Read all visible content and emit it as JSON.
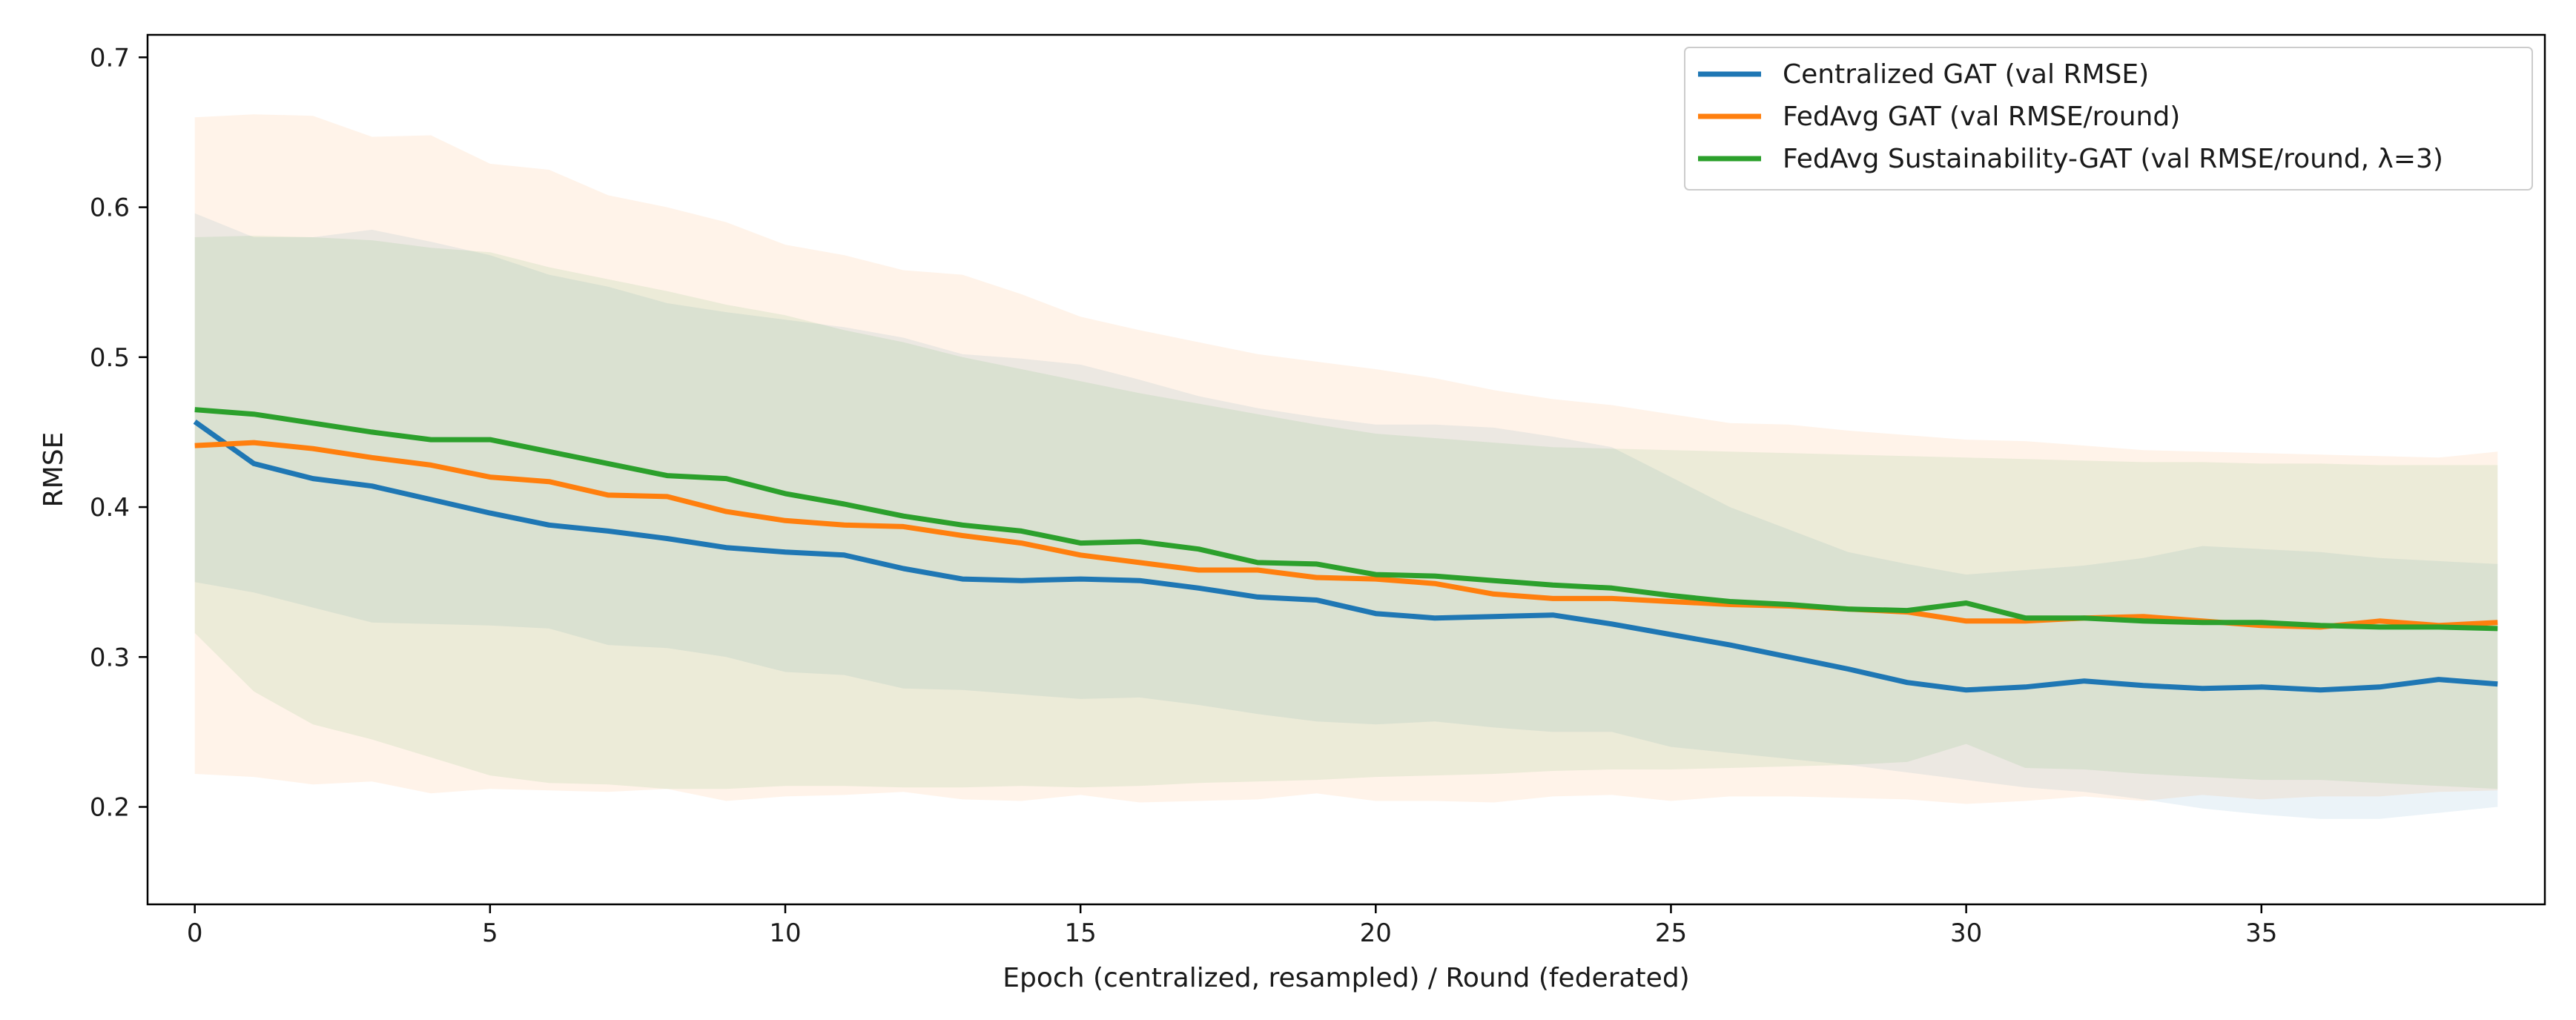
{
  "chart_data": {
    "type": "line",
    "xlabel": "Epoch (centralized, resampled) / Round (federated)",
    "ylabel": "RMSE",
    "xlim": [
      -0.8,
      39.8
    ],
    "ylim": [
      0.135,
      0.715
    ],
    "xticks": [
      0,
      5,
      10,
      15,
      20,
      25,
      30,
      35
    ],
    "yticks": [
      0.2,
      0.3,
      0.4,
      0.5,
      0.6,
      0.7
    ],
    "grid": false,
    "legend_position": "top-right",
    "series": [
      {
        "name": "Centralized GAT (val RMSE)",
        "color": "#1f77b4",
        "x": [
          0,
          1,
          2,
          3,
          4,
          5,
          6,
          7,
          8,
          9,
          10,
          11,
          12,
          13,
          14,
          15,
          16,
          17,
          18,
          19,
          20,
          21,
          22,
          23,
          24,
          25,
          26,
          27,
          28,
          29,
          30,
          31,
          32,
          33,
          34,
          35,
          36,
          37,
          38,
          39
        ],
        "values": [
          0.457,
          0.429,
          0.419,
          0.414,
          0.405,
          0.396,
          0.388,
          0.384,
          0.379,
          0.373,
          0.37,
          0.368,
          0.359,
          0.352,
          0.351,
          0.352,
          0.351,
          0.346,
          0.34,
          0.338,
          0.329,
          0.326,
          0.327,
          0.328,
          0.322,
          0.315,
          0.308,
          0.3,
          0.292,
          0.283,
          0.278,
          0.28,
          0.284,
          0.281,
          0.279,
          0.28,
          0.278,
          0.28,
          0.285,
          0.282
        ],
        "lower": [
          0.35,
          0.343,
          0.333,
          0.323,
          0.322,
          0.321,
          0.319,
          0.308,
          0.306,
          0.3,
          0.29,
          0.288,
          0.279,
          0.278,
          0.275,
          0.272,
          0.273,
          0.268,
          0.262,
          0.257,
          0.255,
          0.257,
          0.253,
          0.25,
          0.25,
          0.24,
          0.236,
          0.232,
          0.228,
          0.223,
          0.218,
          0.213,
          0.21,
          0.205,
          0.199,
          0.195,
          0.192,
          0.192,
          0.196,
          0.2
        ],
        "upper": [
          0.596,
          0.58,
          0.58,
          0.585,
          0.577,
          0.568,
          0.555,
          0.547,
          0.536,
          0.53,
          0.525,
          0.52,
          0.513,
          0.502,
          0.499,
          0.495,
          0.485,
          0.474,
          0.466,
          0.46,
          0.455,
          0.455,
          0.453,
          0.447,
          0.44,
          0.42,
          0.4,
          0.385,
          0.37,
          0.362,
          0.355,
          0.358,
          0.361,
          0.366,
          0.374,
          0.372,
          0.37,
          0.366,
          0.364,
          0.362
        ]
      },
      {
        "name": "FedAvg GAT (val RMSE/round)",
        "color": "#ff7f0e",
        "x": [
          0,
          1,
          2,
          3,
          4,
          5,
          6,
          7,
          8,
          9,
          10,
          11,
          12,
          13,
          14,
          15,
          16,
          17,
          18,
          19,
          20,
          21,
          22,
          23,
          24,
          25,
          26,
          27,
          28,
          29,
          30,
          31,
          32,
          33,
          34,
          35,
          36,
          37,
          38,
          39
        ],
        "values": [
          0.441,
          0.443,
          0.439,
          0.433,
          0.428,
          0.42,
          0.417,
          0.408,
          0.407,
          0.397,
          0.391,
          0.388,
          0.387,
          0.381,
          0.376,
          0.368,
          0.363,
          0.358,
          0.358,
          0.353,
          0.352,
          0.349,
          0.342,
          0.339,
          0.339,
          0.337,
          0.335,
          0.334,
          0.332,
          0.33,
          0.324,
          0.324,
          0.326,
          0.327,
          0.324,
          0.321,
          0.32,
          0.324,
          0.321,
          0.323
        ],
        "lower": [
          0.222,
          0.22,
          0.215,
          0.217,
          0.209,
          0.212,
          0.211,
          0.21,
          0.212,
          0.204,
          0.207,
          0.208,
          0.21,
          0.205,
          0.204,
          0.208,
          0.203,
          0.204,
          0.205,
          0.209,
          0.204,
          0.204,
          0.203,
          0.207,
          0.208,
          0.204,
          0.207,
          0.207,
          0.206,
          0.205,
          0.202,
          0.204,
          0.207,
          0.204,
          0.208,
          0.205,
          0.207,
          0.207,
          0.21,
          0.211
        ],
        "upper": [
          0.66,
          0.662,
          0.661,
          0.647,
          0.648,
          0.629,
          0.625,
          0.608,
          0.6,
          0.59,
          0.575,
          0.568,
          0.558,
          0.555,
          0.542,
          0.527,
          0.518,
          0.51,
          0.502,
          0.497,
          0.492,
          0.486,
          0.478,
          0.472,
          0.468,
          0.462,
          0.456,
          0.455,
          0.451,
          0.448,
          0.445,
          0.444,
          0.441,
          0.438,
          0.437,
          0.436,
          0.435,
          0.434,
          0.433,
          0.437
        ]
      },
      {
        "name": "FedAvg Sustainability-GAT (val RMSE/round, λ=3)",
        "color": "#2ca02c",
        "x": [
          0,
          1,
          2,
          3,
          4,
          5,
          6,
          7,
          8,
          9,
          10,
          11,
          12,
          13,
          14,
          15,
          16,
          17,
          18,
          19,
          20,
          21,
          22,
          23,
          24,
          25,
          26,
          27,
          28,
          29,
          30,
          31,
          32,
          33,
          34,
          35,
          36,
          37,
          38,
          39
        ],
        "values": [
          0.465,
          0.462,
          0.456,
          0.45,
          0.445,
          0.445,
          0.437,
          0.429,
          0.421,
          0.419,
          0.409,
          0.402,
          0.394,
          0.388,
          0.384,
          0.376,
          0.377,
          0.372,
          0.363,
          0.362,
          0.355,
          0.354,
          0.351,
          0.348,
          0.346,
          0.341,
          0.337,
          0.335,
          0.332,
          0.331,
          0.336,
          0.326,
          0.326,
          0.324,
          0.323,
          0.323,
          0.321,
          0.32,
          0.32,
          0.319
        ],
        "lower": [
          0.316,
          0.277,
          0.255,
          0.245,
          0.233,
          0.221,
          0.216,
          0.215,
          0.212,
          0.212,
          0.214,
          0.214,
          0.213,
          0.213,
          0.214,
          0.213,
          0.214,
          0.216,
          0.217,
          0.218,
          0.22,
          0.221,
          0.222,
          0.224,
          0.225,
          0.225,
          0.226,
          0.227,
          0.228,
          0.23,
          0.242,
          0.226,
          0.225,
          0.222,
          0.22,
          0.218,
          0.218,
          0.216,
          0.214,
          0.212
        ],
        "upper": [
          0.58,
          0.581,
          0.58,
          0.578,
          0.573,
          0.57,
          0.56,
          0.552,
          0.544,
          0.535,
          0.528,
          0.518,
          0.51,
          0.5,
          0.492,
          0.484,
          0.476,
          0.469,
          0.462,
          0.455,
          0.449,
          0.446,
          0.443,
          0.44,
          0.439,
          0.438,
          0.437,
          0.436,
          0.435,
          0.434,
          0.433,
          0.432,
          0.431,
          0.43,
          0.43,
          0.429,
          0.429,
          0.428,
          0.428,
          0.428
        ]
      }
    ]
  }
}
